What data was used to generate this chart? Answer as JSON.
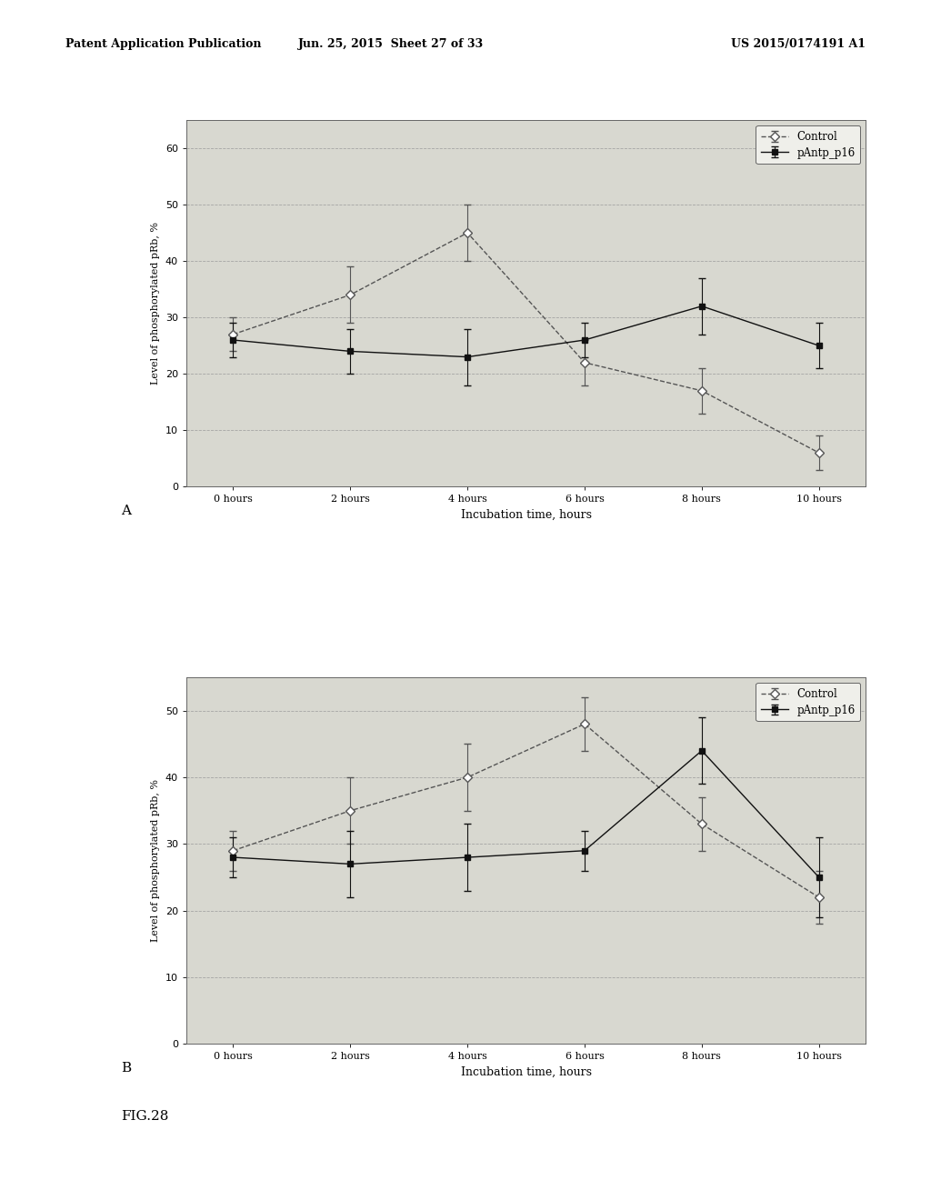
{
  "header_left": "Patent Application Publication",
  "header_center": "Jun. 25, 2015  Sheet 27 of 33",
  "header_right": "US 2015/0174191 A1",
  "x_values": [
    0,
    2,
    4,
    6,
    8,
    10
  ],
  "x_labels": [
    "0 hours",
    "2 hours",
    "4 hours",
    "6 hours",
    "8 hours",
    "10 hours"
  ],
  "xlabel": "Incubation time, hours",
  "ylabel": "Level of phosphorylated pRb, %",
  "chart_A": {
    "control_y": [
      27,
      34,
      45,
      22,
      17,
      6
    ],
    "control_yerr": [
      3,
      5,
      5,
      4,
      4,
      3
    ],
    "pantp_y": [
      26,
      24,
      23,
      26,
      32,
      25
    ],
    "pantp_yerr": [
      3,
      4,
      5,
      3,
      5,
      4
    ],
    "ylim": [
      0,
      65
    ],
    "yticks": [
      0,
      10,
      20,
      30,
      40,
      50,
      60
    ]
  },
  "chart_B": {
    "control_y": [
      29,
      35,
      40,
      48,
      33,
      22
    ],
    "control_yerr": [
      3,
      5,
      5,
      4,
      4,
      4
    ],
    "pantp_y": [
      28,
      27,
      28,
      29,
      44,
      25
    ],
    "pantp_yerr": [
      3,
      5,
      5,
      3,
      5,
      6
    ],
    "ylim": [
      0,
      55
    ],
    "yticks": [
      0,
      10,
      20,
      30,
      40,
      50
    ]
  },
  "legend_control_label": "Control",
  "legend_pantp_label": "pAntp_p16",
  "label_A": "A",
  "label_B": "B",
  "fig_label": "FIG.28",
  "bg_color": "#d8d8d0",
  "fig_bg_color": "#ffffff",
  "line_color_control": "#555555",
  "line_color_pantp": "#111111",
  "grid_color": "#999999",
  "spine_color": "#666666"
}
